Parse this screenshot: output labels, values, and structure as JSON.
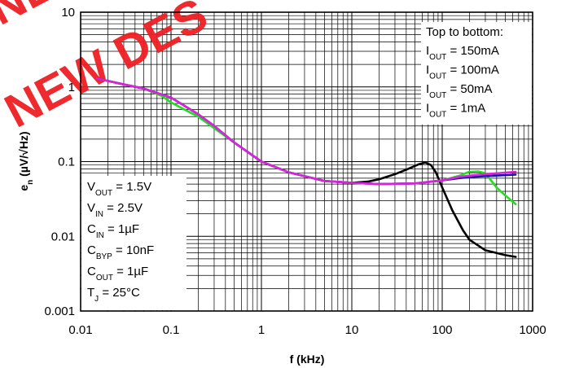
{
  "chart_data": {
    "type": "line",
    "xscale": "log",
    "yscale": "log",
    "xlim": [
      0.01,
      1000
    ],
    "ylim": [
      0.001,
      10
    ],
    "grid": true,
    "xlabel": "f (kHz)",
    "ylabel": "e",
    "ylabel_sub": "n",
    "ylabel_unit": " (µV/√Hz)",
    "x_ticks": [
      {
        "value": 0.01,
        "label": "0.01"
      },
      {
        "value": 0.1,
        "label": "0.1"
      },
      {
        "value": 1,
        "label": "1"
      },
      {
        "value": 10,
        "label": "10"
      },
      {
        "value": 100,
        "label": "100"
      },
      {
        "value": 1000,
        "label": "1000"
      }
    ],
    "y_ticks": [
      {
        "value": 10,
        "label": "10"
      },
      {
        "value": 1,
        "label": "1"
      },
      {
        "value": 0.1,
        "label": "0.1"
      },
      {
        "value": 0.01,
        "label": "0.01"
      },
      {
        "value": 0.001,
        "label": "0.001"
      }
    ],
    "legend": {
      "title": "Top to bottom:",
      "entries": [
        {
          "pre": "I",
          "sub": "OUT",
          "post": " = 150mA"
        },
        {
          "pre": "I",
          "sub": "OUT",
          "post": " = 100mA"
        },
        {
          "pre": "I",
          "sub": "OUT",
          "post": " = 50mA"
        },
        {
          "pre": "I",
          "sub": "OUT",
          "post": " = 1mA"
        }
      ]
    },
    "conditions": [
      {
        "pre": "V",
        "sub": "OUT",
        "post": " = 1.5V"
      },
      {
        "pre": "V",
        "sub": "IN",
        "post": " = 2.5V"
      },
      {
        "pre": "C",
        "sub": "IN",
        "post": " = 1µF"
      },
      {
        "pre": "C",
        "sub": "BYP",
        "post": " = 10nF"
      },
      {
        "pre": "C",
        "sub": "OUT",
        "post": " = 1µF"
      },
      {
        "pre": "T",
        "sub": "J",
        "post": " = 25°C"
      }
    ],
    "series": [
      {
        "color": "#000000",
        "x": [
          0.015,
          0.03,
          0.05,
          0.1,
          0.2,
          0.3,
          0.5,
          1,
          2,
          5,
          10,
          15,
          20,
          30,
          40,
          55,
          65,
          75,
          85,
          100,
          130,
          170,
          200,
          300,
          500,
          650
        ],
        "y": [
          1.3,
          1.08,
          0.95,
          0.72,
          0.43,
          0.3,
          0.18,
          0.1,
          0.072,
          0.055,
          0.052,
          0.054,
          0.058,
          0.068,
          0.078,
          0.092,
          0.097,
          0.09,
          0.072,
          0.045,
          0.022,
          0.012,
          0.009,
          0.0065,
          0.0056,
          0.0053
        ]
      },
      {
        "color": "#22dd22",
        "x": [
          0.015,
          0.03,
          0.05,
          0.08,
          0.1,
          0.2,
          0.3,
          0.5,
          1,
          2,
          5,
          10,
          20,
          50,
          100,
          150,
          200,
          250,
          300,
          400,
          500,
          650
        ],
        "y": [
          1.3,
          1.08,
          0.95,
          0.75,
          0.62,
          0.4,
          0.28,
          0.18,
          0.1,
          0.072,
          0.055,
          0.052,
          0.05,
          0.051,
          0.056,
          0.064,
          0.073,
          0.074,
          0.07,
          0.045,
          0.035,
          0.027
        ]
      },
      {
        "color": "#1111aa",
        "x": [
          0.015,
          0.03,
          0.05,
          0.1,
          0.2,
          0.3,
          0.5,
          1,
          2,
          5,
          10,
          20,
          50,
          100,
          150,
          200,
          300,
          500,
          650
        ],
        "y": [
          1.3,
          1.08,
          0.95,
          0.72,
          0.43,
          0.3,
          0.18,
          0.1,
          0.072,
          0.055,
          0.052,
          0.05,
          0.051,
          0.056,
          0.06,
          0.062,
          0.064,
          0.066,
          0.067
        ]
      },
      {
        "color": "#dd22dd",
        "x": [
          0.015,
          0.03,
          0.05,
          0.1,
          0.2,
          0.3,
          0.5,
          1,
          2,
          5,
          10,
          20,
          50,
          100,
          150,
          200,
          300,
          500,
          650
        ],
        "y": [
          1.3,
          1.08,
          0.95,
          0.72,
          0.43,
          0.3,
          0.18,
          0.1,
          0.072,
          0.055,
          0.052,
          0.05,
          0.051,
          0.056,
          0.062,
          0.065,
          0.068,
          0.071,
          0.073
        ]
      }
    ]
  },
  "watermark": {
    "line1": "NEW",
    "line2": "NEW DES"
  }
}
